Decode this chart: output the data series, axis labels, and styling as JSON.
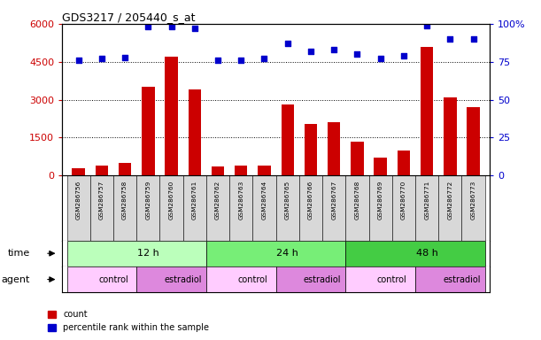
{
  "title": "GDS3217 / 205440_s_at",
  "samples": [
    "GSM286756",
    "GSM286757",
    "GSM286758",
    "GSM286759",
    "GSM286760",
    "GSM286761",
    "GSM286762",
    "GSM286763",
    "GSM286764",
    "GSM286765",
    "GSM286766",
    "GSM286767",
    "GSM286768",
    "GSM286769",
    "GSM286770",
    "GSM286771",
    "GSM286772",
    "GSM286773"
  ],
  "counts": [
    300,
    380,
    500,
    3500,
    4700,
    3400,
    350,
    380,
    400,
    2800,
    2050,
    2100,
    1350,
    700,
    1000,
    5100,
    3100,
    2700
  ],
  "percentiles": [
    76,
    77,
    78,
    98,
    98,
    97,
    76,
    76,
    77,
    87,
    82,
    83,
    80,
    77,
    79,
    99,
    90,
    90
  ],
  "bar_color": "#cc0000",
  "dot_color": "#0000cc",
  "left_ylim": [
    0,
    6000
  ],
  "left_yticks": [
    0,
    1500,
    3000,
    4500,
    6000
  ],
  "left_yticklabels": [
    "0",
    "1500",
    "3000",
    "4500",
    "6000"
  ],
  "right_ylim": [
    0,
    100
  ],
  "right_yticks": [
    0,
    25,
    50,
    75,
    100
  ],
  "right_yticklabels": [
    "0",
    "25",
    "50",
    "75",
    "100%"
  ],
  "time_groups": [
    {
      "label": "12 h",
      "start": 0,
      "end": 6,
      "color": "#bbffbb"
    },
    {
      "label": "24 h",
      "start": 6,
      "end": 12,
      "color": "#77ee77"
    },
    {
      "label": "48 h",
      "start": 12,
      "end": 18,
      "color": "#44cc44"
    }
  ],
  "agent_groups": [
    {
      "label": "control",
      "start": 0,
      "end": 3,
      "color": "#ffccff"
    },
    {
      "label": "estradiol",
      "start": 3,
      "end": 6,
      "color": "#dd88dd"
    },
    {
      "label": "control",
      "start": 6,
      "end": 9,
      "color": "#ffccff"
    },
    {
      "label": "estradiol",
      "start": 9,
      "end": 12,
      "color": "#dd88dd"
    },
    {
      "label": "control",
      "start": 12,
      "end": 15,
      "color": "#ffccff"
    },
    {
      "label": "estradiol",
      "start": 15,
      "end": 18,
      "color": "#dd88dd"
    }
  ],
  "legend_count_label": "count",
  "legend_pct_label": "percentile rank within the sample",
  "time_label": "time",
  "agent_label": "agent",
  "bg_color": "#ffffff",
  "grid_color": "#000000",
  "tick_label_color_left": "#cc0000",
  "tick_label_color_right": "#0000cc",
  "bar_width": 0.55,
  "xticklabel_bg": "#d8d8d8"
}
